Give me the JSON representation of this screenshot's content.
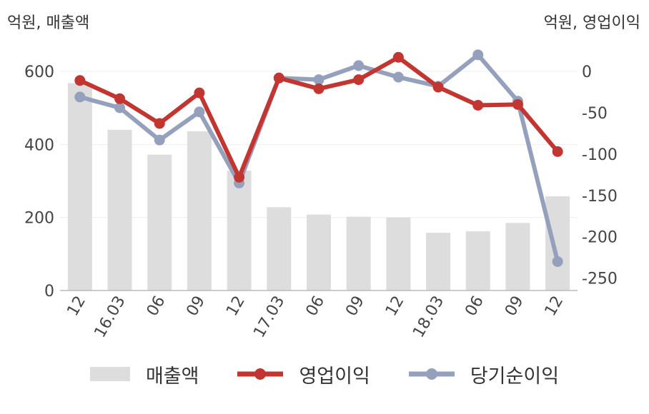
{
  "units": {
    "left": "억원, 매출액",
    "right": "억원, 영업이익"
  },
  "colors": {
    "bar": "#dddddd",
    "operating_profit": "#c23531",
    "net_income": "#95a1bc",
    "axis": "#bbbbbb",
    "grid": "#eeeeee",
    "text": "#444444"
  },
  "chart_data": {
    "type": "bar+line",
    "categories": [
      "12",
      "16.03",
      "06",
      "09",
      "12",
      "17.03",
      "06",
      "09",
      "12",
      "18.03",
      "06",
      "09",
      "12"
    ],
    "y_left": {
      "label": "억원, 매출액",
      "lim": [
        0,
        600
      ],
      "ticks": [
        0,
        200,
        400,
        600
      ]
    },
    "y_right": {
      "label": "억원, 영업이익",
      "lim": [
        -265,
        0
      ],
      "ticks": [
        0,
        -50,
        -100,
        -150,
        -200,
        -250
      ]
    },
    "series": [
      {
        "name": "매출액",
        "type": "bar",
        "axis": "left",
        "values": [
          568,
          440,
          372,
          436,
          328,
          228,
          208,
          202,
          200,
          158,
          162,
          185,
          258
        ]
      },
      {
        "name": "영업이익",
        "type": "line",
        "axis": "right",
        "values": [
          -11,
          -33,
          -63,
          -26,
          -128,
          -8,
          -21,
          -10,
          17,
          -19,
          -41,
          -40,
          -97
        ]
      },
      {
        "name": "당기순이익",
        "type": "line",
        "axis": "right",
        "values": [
          -31,
          -44,
          -83,
          -49,
          -135,
          -8,
          -10,
          7,
          -7,
          -18,
          20,
          -36,
          -230
        ]
      }
    ],
    "legend_position": "bottom"
  }
}
